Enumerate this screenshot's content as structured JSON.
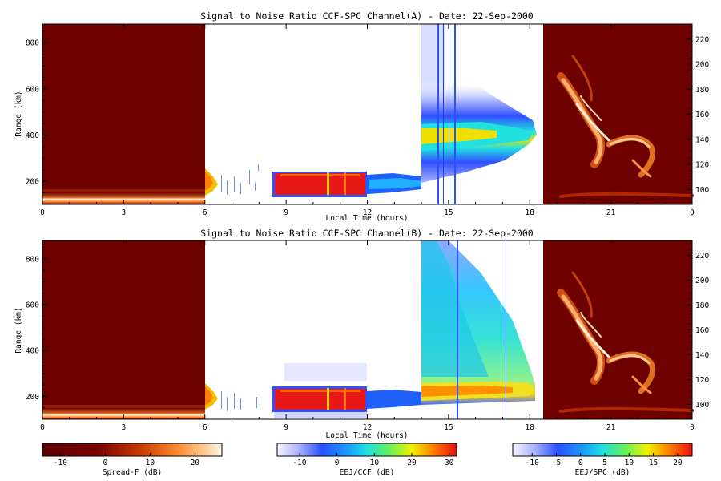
{
  "chart_data": [
    {
      "type": "heatmap",
      "title": "Signal to Noise Ratio CCF-SPC Channel(A) - Date: 22-Sep-2000",
      "xlabel": "Local Time (hours)",
      "ylabel": "Range (km)",
      "x_ticks": [
        "0",
        "3",
        "6",
        "9",
        "12",
        "15",
        "18",
        "21",
        "0"
      ],
      "y_ticks": [
        "200",
        "400",
        "600",
        "800"
      ],
      "y_ticks_right": [
        "100",
        "120",
        "140",
        "160",
        "180",
        "200",
        "220"
      ],
      "xlim_hours": [
        0,
        24
      ],
      "ylim_km": [
        100,
        880
      ],
      "ylim_right_km": [
        88,
        232
      ],
      "segments": [
        {
          "mode": "Spread-F",
          "x_start": 0,
          "x_end": 6,
          "description_color": "dark red background, bright layer near bottom (~100-130 km)"
        },
        {
          "mode": "EEJ/CCF",
          "x_start": 6,
          "x_end": 14,
          "layer_range_km": [
            140,
            250
          ],
          "peak_snr_db": 30
        },
        {
          "mode": "EEJ/SPC",
          "x_start": 14,
          "x_end": 18.4,
          "layer_range_km": [
            300,
            450
          ],
          "peak_snr_db": 20
        },
        {
          "mode": "Spread-F",
          "x_start": 18.4,
          "x_end": 24,
          "description_color": "plume structures 120-220 km (right axis)"
        }
      ]
    },
    {
      "type": "heatmap",
      "title": "Signal to Noise Ratio CCF-SPC Channel(B) - Date: 22-Sep-2000",
      "xlabel": "Local Time (hours)",
      "ylabel": "Range (km)",
      "x_ticks": [
        "0",
        "3",
        "6",
        "9",
        "12",
        "15",
        "18",
        "21",
        "0"
      ],
      "y_ticks": [
        "200",
        "400",
        "600",
        "800"
      ],
      "y_ticks_right": [
        "100",
        "120",
        "140",
        "160",
        "180",
        "200",
        "220"
      ],
      "xlim_hours": [
        0,
        24
      ],
      "ylim_km": [
        100,
        880
      ],
      "ylim_right_km": [
        88,
        232
      ],
      "segments": [
        {
          "mode": "Spread-F",
          "x_start": 0,
          "x_end": 6
        },
        {
          "mode": "EEJ/CCF",
          "x_start": 6,
          "x_end": 14,
          "layer_range_km": [
            140,
            250
          ],
          "peak_snr_db": 30
        },
        {
          "mode": "EEJ/SPC",
          "x_start": 14,
          "x_end": 18.4,
          "layer_range_km": [
            150,
            880
          ],
          "peak_snr_db": 15
        },
        {
          "mode": "Spread-F",
          "x_start": 18.4,
          "x_end": 24
        }
      ]
    }
  ],
  "colorbars": [
    {
      "label": "Spread-F (dB)",
      "ticks": [
        "-10",
        "0",
        "10",
        "20"
      ],
      "range": [
        -14,
        26
      ],
      "tick_values": [
        -10,
        0,
        10,
        20
      ],
      "colormap": "heat"
    },
    {
      "label": "EEJ/CCF (dB)",
      "ticks": [
        "-10",
        "0",
        "10",
        "20",
        "30"
      ],
      "range": [
        -16,
        32
      ],
      "tick_values": [
        -10,
        0,
        10,
        20,
        30
      ],
      "colormap": "jet"
    },
    {
      "label": "EEJ/SPC (dB)",
      "ticks": [
        "-10",
        "-5",
        "0",
        "5",
        "10",
        "15",
        "20"
      ],
      "range": [
        -14,
        23
      ],
      "tick_values": [
        -10,
        -5,
        0,
        5,
        10,
        15,
        20
      ],
      "colormap": "jet"
    }
  ],
  "colors": {
    "spreadf_background": "#6e0000",
    "spreadf_dark": "#5a0000",
    "spreadf_mid": "#c83c00",
    "spreadf_bright": "#ffb070",
    "spreadf_white": "#fff4e0",
    "jet_low": "#e8e8ff",
    "jet_blue": "#2050ff",
    "jet_cyan": "#20d8ff",
    "jet_yellow": "#f0f000",
    "jet_red": "#f01010"
  }
}
